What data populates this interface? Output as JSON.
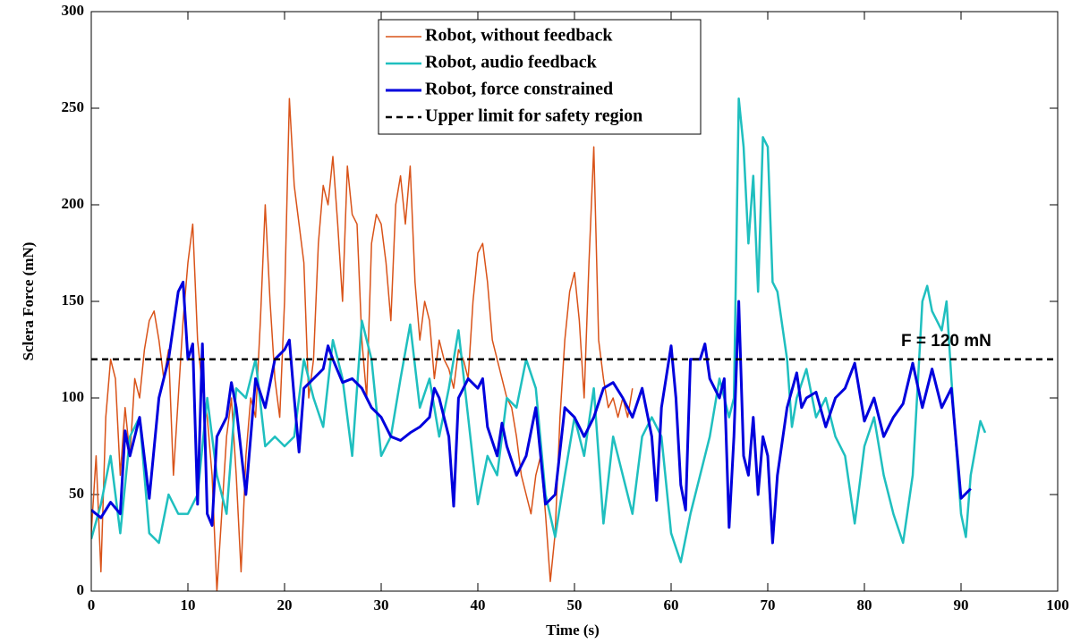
{
  "chart_data": {
    "type": "line",
    "xlabel": "Time (s)",
    "ylabel": "Sclera Force (mN)",
    "xlim": [
      0,
      100
    ],
    "xticks": [
      0,
      10,
      20,
      30,
      40,
      50,
      60,
      70,
      80,
      90,
      100
    ],
    "ylim": [
      0,
      300
    ],
    "yticks": [
      0,
      50,
      100,
      150,
      200,
      250,
      300
    ],
    "legend": "top-center",
    "series": [
      {
        "name": "Robot, without feedback",
        "color": "#d95319",
        "width": 1.5,
        "x": [
          0,
          0.5,
          1,
          1.5,
          2,
          2.5,
          3,
          3.5,
          4,
          4.5,
          5,
          5.5,
          6,
          6.5,
          7,
          7.5,
          8,
          8.5,
          9,
          9.5,
          10,
          10.5,
          11,
          11.5,
          12,
          12.5,
          13,
          13.5,
          14,
          14.5,
          15,
          15.5,
          16,
          16.5,
          17,
          17.5,
          18,
          18.5,
          19,
          19.5,
          20,
          20.5,
          21,
          21.5,
          22,
          22.5,
          23,
          23.5,
          24,
          24.5,
          25,
          25.5,
          26,
          26.5,
          27,
          27.5,
          28,
          28.5,
          29,
          29.5,
          30,
          30.5,
          31,
          31.5,
          32,
          32.5,
          33,
          33.5,
          34,
          34.5,
          35,
          35.5,
          36,
          36.5,
          37,
          37.5,
          38,
          38.5,
          39,
          39.5,
          40,
          40.5,
          41,
          41.5,
          42,
          42.5,
          43,
          43.5,
          44,
          44.5,
          45,
          45.5,
          46,
          46.5,
          47,
          47.5,
          48,
          48.5,
          49,
          49.5,
          50,
          50.5,
          51,
          51.5,
          52,
          52.5,
          53,
          53.5,
          54,
          54.5,
          55,
          55.5,
          56
        ],
        "values": [
          30,
          70,
          10,
          90,
          120,
          110,
          60,
          95,
          70,
          110,
          100,
          125,
          140,
          145,
          130,
          110,
          125,
          60,
          100,
          140,
          170,
          190,
          130,
          105,
          90,
          60,
          0,
          40,
          80,
          100,
          60,
          10,
          70,
          100,
          90,
          140,
          200,
          150,
          110,
          90,
          150,
          255,
          210,
          190,
          170,
          100,
          120,
          180,
          210,
          200,
          225,
          190,
          150,
          220,
          195,
          190,
          130,
          100,
          180,
          195,
          190,
          170,
          140,
          200,
          215,
          190,
          220,
          160,
          130,
          150,
          140,
          110,
          130,
          120,
          115,
          105,
          125,
          120,
          110,
          150,
          175,
          180,
          160,
          130,
          120,
          110,
          100,
          95,
          80,
          60,
          50,
          40,
          60,
          70,
          40,
          5,
          30,
          90,
          130,
          155,
          165,
          140,
          100,
          170,
          230,
          130,
          110,
          95,
          100,
          90,
          100,
          90,
          105
        ]
      },
      {
        "name": "Robot, audio feedback",
        "color": "#1fbfbf",
        "width": 2.5,
        "x": [
          0,
          1,
          2,
          3,
          4,
          5,
          6,
          7,
          8,
          9,
          10,
          11,
          12,
          13,
          14,
          15,
          16,
          17,
          18,
          19,
          20,
          21,
          22,
          23,
          24,
          25,
          26,
          27,
          28,
          29,
          30,
          31,
          32,
          33,
          34,
          35,
          36,
          37,
          38,
          39,
          40,
          41,
          42,
          43,
          44,
          45,
          46,
          47,
          48,
          49,
          50,
          51,
          52,
          53,
          54,
          55,
          56,
          57,
          58,
          59,
          60,
          61,
          62,
          63,
          64,
          65,
          66,
          66.5,
          67,
          67.5,
          68,
          68.5,
          69,
          69.5,
          70,
          70.5,
          71,
          72,
          72.5,
          73,
          74,
          75,
          76,
          77,
          78,
          79,
          80,
          81,
          82,
          83,
          84,
          85,
          86,
          86.5,
          87,
          88,
          88.5,
          89,
          90,
          90.5,
          91,
          92,
          92.5
        ],
        "values": [
          27,
          45,
          70,
          30,
          80,
          90,
          30,
          25,
          50,
          40,
          40,
          50,
          100,
          60,
          40,
          105,
          100,
          120,
          75,
          80,
          75,
          80,
          120,
          100,
          85,
          130,
          110,
          70,
          140,
          120,
          70,
          80,
          110,
          138,
          95,
          110,
          80,
          105,
          135,
          90,
          45,
          70,
          60,
          100,
          95,
          120,
          105,
          50,
          28,
          60,
          90,
          70,
          105,
          35,
          80,
          60,
          40,
          80,
          90,
          80,
          30,
          15,
          40,
          60,
          80,
          110,
          90,
          100,
          255,
          230,
          180,
          215,
          155,
          235,
          230,
          160,
          155,
          120,
          85,
          100,
          115,
          90,
          100,
          80,
          70,
          35,
          75,
          90,
          60,
          40,
          25,
          60,
          150,
          158,
          145,
          135,
          150,
          110,
          40,
          28,
          60,
          88,
          82
        ]
      },
      {
        "name": "Robot, force constrained",
        "color": "#0000dd",
        "width": 3,
        "x": [
          0,
          1,
          2,
          3,
          3.5,
          4,
          5,
          6,
          7,
          8,
          9,
          9.5,
          10,
          10.5,
          11,
          11.5,
          12,
          12.5,
          13,
          14,
          14.5,
          15,
          16,
          17,
          18,
          19,
          20,
          20.5,
          21,
          21.5,
          22,
          23,
          24,
          24.5,
          25,
          26,
          27,
          28,
          29,
          30,
          31,
          32,
          33,
          34,
          35,
          35.5,
          36,
          37,
          37.5,
          38,
          39,
          40,
          40.5,
          41,
          42,
          42.5,
          43,
          44,
          45,
          46,
          47,
          48,
          49,
          50,
          51,
          52,
          53,
          54,
          55,
          56,
          57,
          58,
          58.5,
          59,
          60,
          60.5,
          61,
          61.5,
          62,
          63,
          63.5,
          64,
          65,
          65.5,
          66,
          66.5,
          67,
          67.5,
          68,
          68.5,
          69,
          69.5,
          70,
          70.5,
          71,
          72,
          73,
          73.5,
          74,
          75,
          76,
          77,
          78,
          79,
          80,
          81,
          82,
          83,
          84,
          85,
          86,
          87,
          88,
          89,
          90,
          91
        ],
        "values": [
          42,
          38,
          46,
          40,
          83,
          70,
          90,
          48,
          100,
          120,
          155,
          160,
          120,
          128,
          45,
          128,
          40,
          34,
          80,
          90,
          108,
          95,
          50,
          110,
          95,
          120,
          125,
          130,
          100,
          72,
          105,
          110,
          115,
          127,
          120,
          108,
          110,
          105,
          95,
          90,
          80,
          78,
          82,
          85,
          90,
          105,
          100,
          80,
          44,
          100,
          110,
          105,
          110,
          85,
          70,
          87,
          75,
          60,
          70,
          95,
          45,
          50,
          95,
          90,
          80,
          90,
          105,
          108,
          100,
          90,
          105,
          80,
          47,
          95,
          127,
          100,
          55,
          42,
          120,
          120,
          128,
          110,
          100,
          110,
          33,
          80,
          150,
          70,
          60,
          90,
          50,
          80,
          70,
          25,
          60,
          95,
          113,
          95,
          100,
          103,
          85,
          100,
          105,
          118,
          88,
          100,
          80,
          90,
          97,
          118,
          95,
          115,
          95,
          105,
          48,
          53
        ]
      }
    ],
    "reference_line": {
      "name": "Upper limit for safety region",
      "value": 120,
      "color": "#000000",
      "label": "F = 120 mN"
    }
  }
}
